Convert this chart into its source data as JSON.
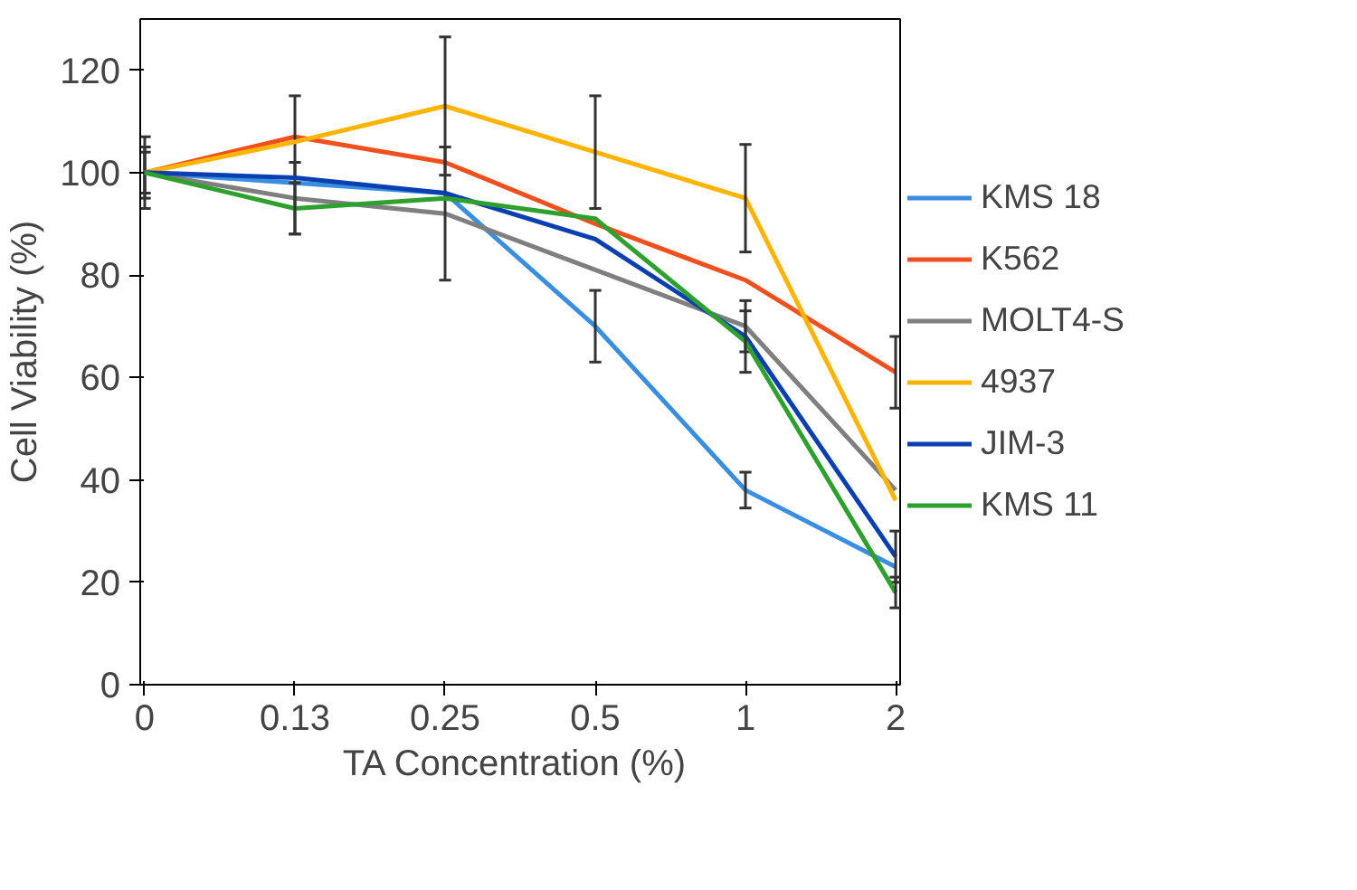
{
  "chart_data": {
    "type": "line",
    "xlabel": "TA Concentration  (%)",
    "ylabel": "Cell Viability (%)",
    "categories": [
      "0",
      "0.13",
      "0.25",
      "0.5",
      "1",
      "2"
    ],
    "ylim": [
      0,
      130
    ],
    "yticks": [
      0,
      20,
      40,
      60,
      80,
      100,
      120
    ],
    "grid": false,
    "legend": "right",
    "marker": "none",
    "line_style": "solid",
    "series": [
      {
        "name": "KMS 18",
        "color": "#3a8ee0",
        "values": [
          100,
          98,
          96,
          70,
          38,
          23
        ],
        "errors": [
          5,
          null,
          null,
          7,
          3.5,
          null
        ]
      },
      {
        "name": "K562",
        "color": "#f0501e",
        "values": [
          100,
          107,
          102,
          90,
          79,
          61
        ],
        "errors": [
          4,
          8,
          null,
          null,
          null,
          7
        ]
      },
      {
        "name": "MOLT4-S",
        "color": "#7f7f7f",
        "values": [
          100,
          95,
          92,
          81,
          70,
          38
        ],
        "errors": [
          7,
          7,
          13,
          null,
          5,
          null
        ]
      },
      {
        "name": "4937",
        "color": "#ffb400",
        "values": [
          100,
          106,
          113,
          104,
          95,
          36
        ],
        "errors": [
          null,
          null,
          13.5,
          11,
          10.5,
          null
        ]
      },
      {
        "name": "JIM-3",
        "color": "#0a3fb0",
        "values": [
          100,
          99,
          96,
          87,
          68,
          25
        ],
        "errors": [
          null,
          null,
          null,
          null,
          null,
          5
        ]
      },
      {
        "name": "KMS 11",
        "color": "#2ea02e",
        "values": [
          100,
          93,
          95,
          91,
          67,
          18
        ],
        "errors": [
          null,
          5,
          null,
          null,
          6,
          3
        ]
      }
    ]
  }
}
